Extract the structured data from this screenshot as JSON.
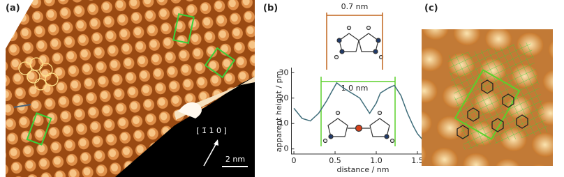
{
  "panel_labels": [
    "(a)",
    "(b)",
    "(c)"
  ],
  "panel_a": {
    "scale_bar": "2 nm",
    "direction": "[ 1̄ 1 0 ]"
  },
  "chart_data": {
    "type": "line",
    "xlabel": "distance / nm",
    "ylabel": "apparent height / pm",
    "annotations": [
      "0.7 nm",
      "1.0 nm"
    ],
    "x": [
      0,
      0.1,
      0.2,
      0.3,
      0.4,
      0.45,
      0.52,
      0.6,
      0.7,
      0.8,
      0.88,
      0.92,
      1.0,
      1.05,
      1.15,
      1.22,
      1.3,
      1.38,
      1.45,
      1.5,
      1.58,
      1.65
    ],
    "values": [
      16,
      12,
      11,
      14,
      19,
      22,
      26,
      24,
      22,
      20,
      16,
      14,
      18,
      22,
      24,
      25,
      21,
      14,
      9,
      6,
      3,
      5
    ],
    "color": "#3f6d7a",
    "xlim": [
      -0.03,
      1.7
    ],
    "ylim": [
      -2,
      32
    ],
    "xticks": [
      0,
      0.5,
      {
        "value": 1,
        "label": "1.0"
      },
      1.5
    ],
    "yticks": [
      0,
      10,
      20,
      30
    ]
  }
}
